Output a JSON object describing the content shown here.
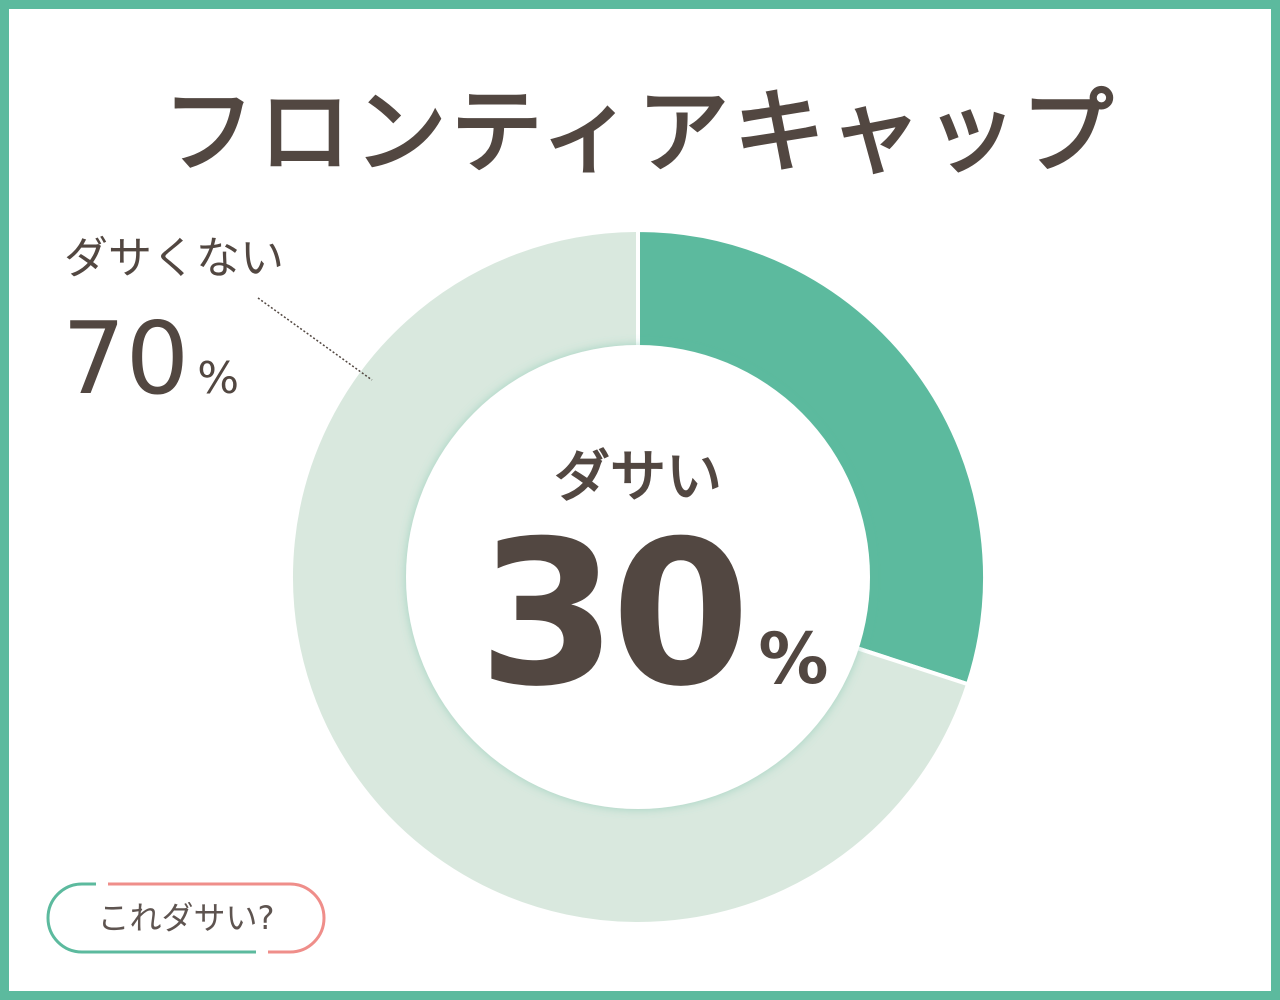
{
  "title": "フロンティアキャップ",
  "chart_data": {
    "type": "pie",
    "style": "donut",
    "categories": [
      "ダサい",
      "ダサくない"
    ],
    "values": [
      30,
      70
    ],
    "unit": "%",
    "colors": [
      "#5cba9e",
      "#d9e8de"
    ],
    "labels": {
      "main": {
        "name": "ダサい",
        "value": "30",
        "unit": "%"
      },
      "other": {
        "name": "ダサくない",
        "value": "70",
        "unit": "%"
      }
    }
  },
  "badge": {
    "text": "これダサい?",
    "colors": [
      "#5cba9e",
      "#ef8e8a"
    ]
  },
  "colors": {
    "frame": "#5cba9e",
    "text": "#524741"
  }
}
